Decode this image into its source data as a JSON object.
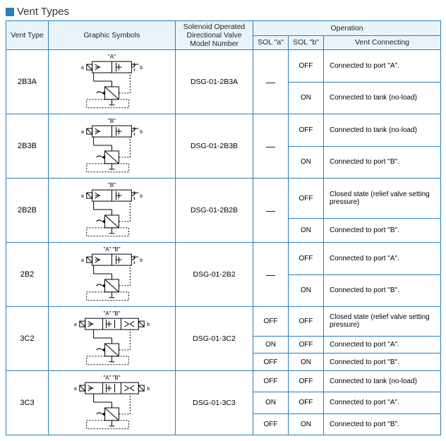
{
  "title": "Vent Types",
  "headers": {
    "vent_type": "Vent Type",
    "graphic": "Graphic Symbols",
    "model": "Solenoid Operated Directional Valve Model Number",
    "operation": "Operation",
    "sol_a": "SOL \"a\"",
    "sol_b": "SOL \"b\"",
    "vent_conn": "Vent Connecting"
  },
  "dash": "—",
  "rows": [
    {
      "vent": "2B3A",
      "model": "DSG-01-2B3A",
      "schematic_label": "\"A\"",
      "schematic_type": "single",
      "sol_a": "—",
      "ops": [
        {
          "sol_b": "OFF",
          "conn": "Connected to port \"A\"."
        },
        {
          "sol_b": "ON",
          "conn": "Connected to tank (no-load)"
        }
      ]
    },
    {
      "vent": "2B3B",
      "model": "DSG-01-2B3B",
      "schematic_label": "\"B\"",
      "schematic_type": "single",
      "sol_a": "—",
      "ops": [
        {
          "sol_b": "OFF",
          "conn": "Connected to tank (no-load)"
        },
        {
          "sol_b": "ON",
          "conn": "Connected to port \"B\"."
        }
      ]
    },
    {
      "vent": "2B2B",
      "model": "DSG-01-2B2B",
      "schematic_label": "\"B\"",
      "schematic_type": "single",
      "sol_a": "—",
      "ops": [
        {
          "sol_b": "OFF",
          "conn": "Closed state (relief valve setting pressure)"
        },
        {
          "sol_b": "ON",
          "conn": "Connected to port \"B\"."
        }
      ]
    },
    {
      "vent": "2B2",
      "model": "DSG-01-2B2",
      "schematic_label": "\"A\" \"B\"",
      "schematic_type": "single",
      "sol_a": "—",
      "ops": [
        {
          "sol_b": "OFF",
          "conn": "Connected to port \"A\"."
        },
        {
          "sol_b": "ON",
          "conn": "Connected to port \"B\"."
        }
      ]
    },
    {
      "vent": "3C2",
      "model": "DSG-01-3C2",
      "schematic_label": "\"A\" \"B\"",
      "schematic_type": "double",
      "ops": [
        {
          "sol_a": "OFF",
          "sol_b": "OFF",
          "conn": "Closed state (relief valve setting pressure)"
        },
        {
          "sol_a": "ON",
          "sol_b": "OFF",
          "conn": "Connected to port \"A\"."
        },
        {
          "sol_a": "OFF",
          "sol_b": "ON",
          "conn": "Connected to port \"B\"."
        }
      ]
    },
    {
      "vent": "3C3",
      "model": "DSG-01-3C3",
      "schematic_label": "\"A\" \"B\"",
      "schematic_type": "double",
      "ops": [
        {
          "sol_a": "OFF",
          "sol_b": "OFF",
          "conn": "Connected to tank (no-load)"
        },
        {
          "sol_a": "ON",
          "sol_b": "OFF",
          "conn": "Connected to port \"A\"."
        },
        {
          "sol_a": "OFF",
          "sol_b": "ON",
          "conn": "Connected to port \"B\"."
        }
      ]
    }
  ],
  "colors": {
    "border": "#2a7fb8",
    "header_bg": "#eaf3fa",
    "marker": "#2a7fb8",
    "schematic_stroke": "#000000"
  }
}
